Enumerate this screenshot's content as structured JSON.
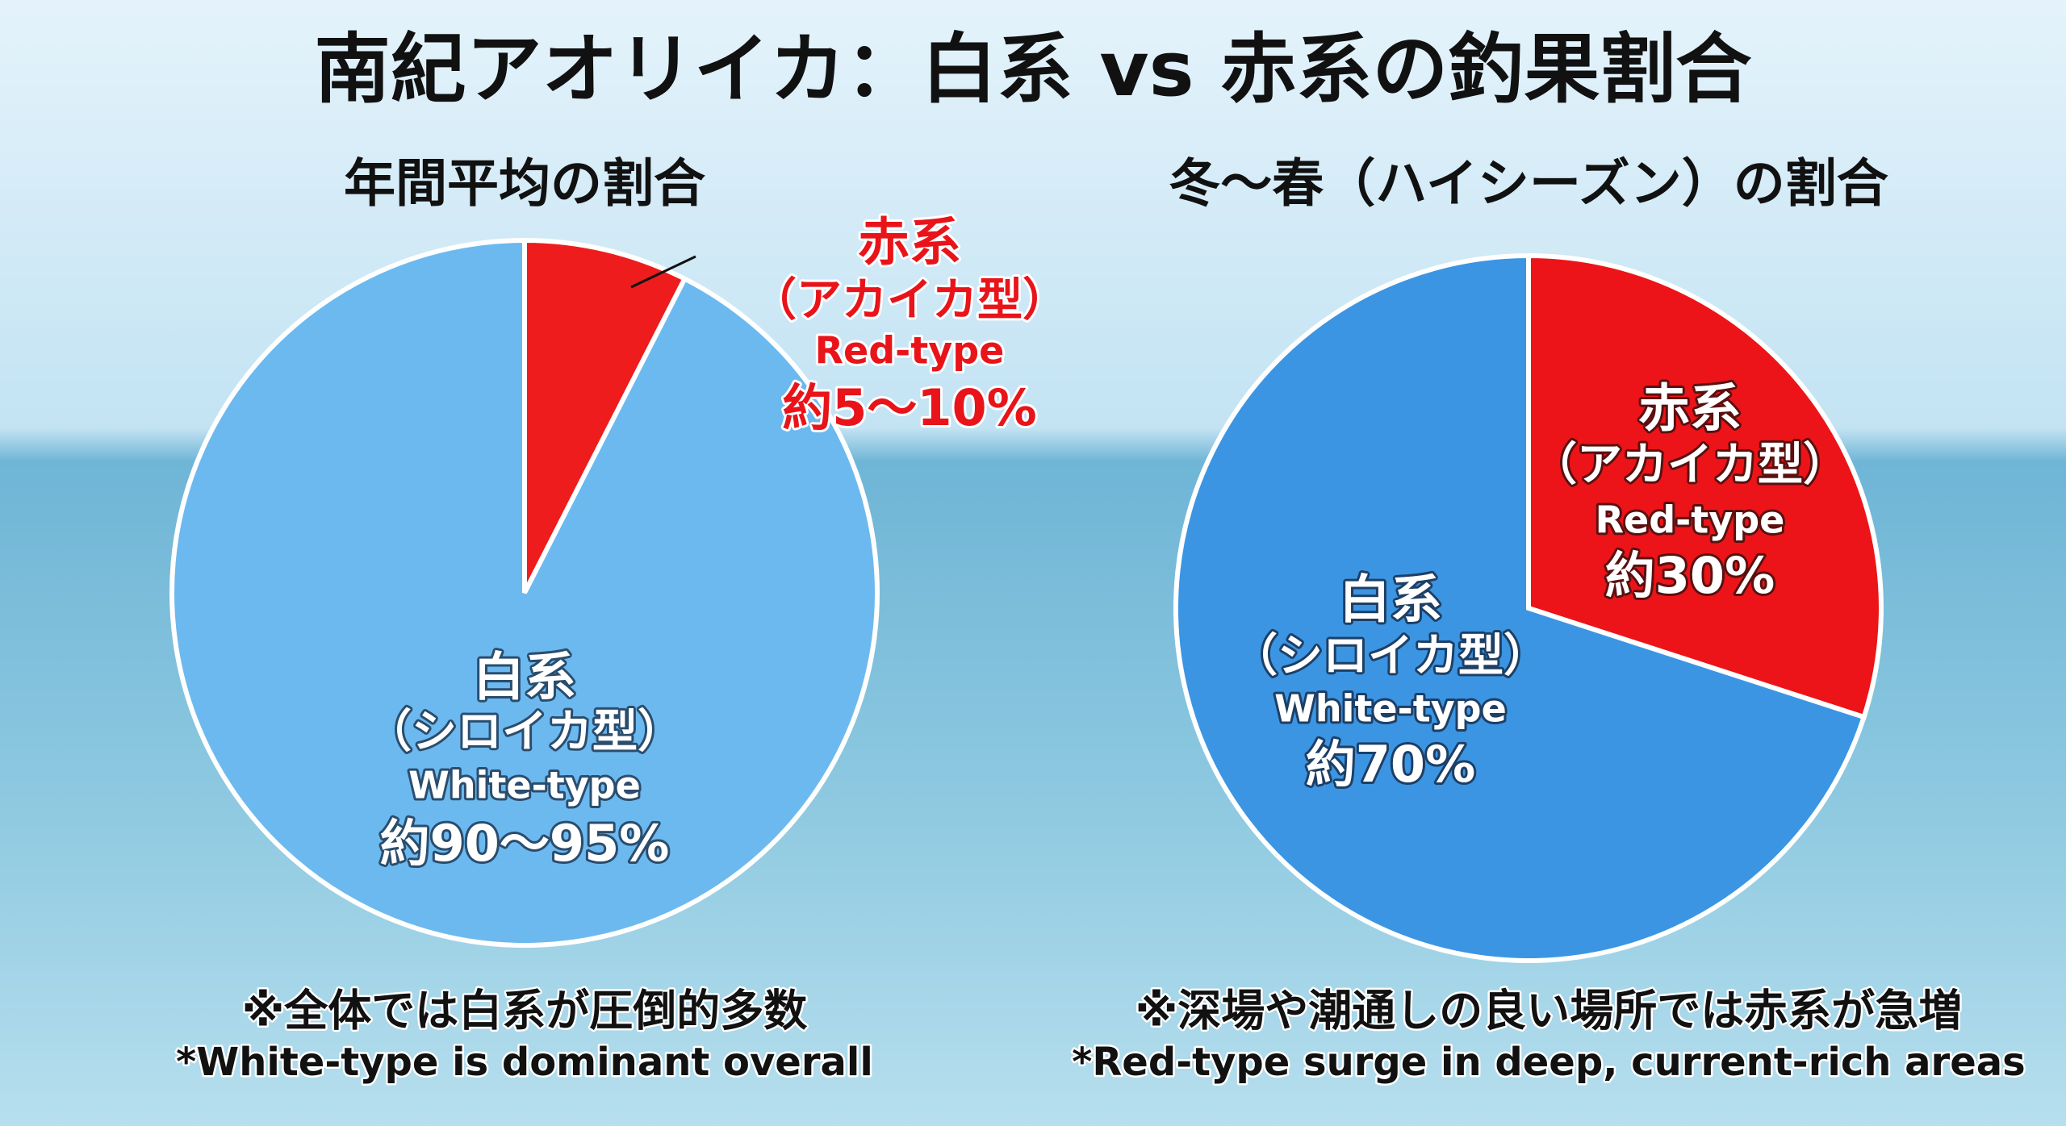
{
  "title": "南紀アオリイカ：白系 vs 赤系の釣果割合",
  "chart_data": [
    {
      "type": "pie",
      "title": "年間平均の割合",
      "categories": [
        "赤系",
        "白系"
      ],
      "category_types": [
        "（アカイカ型）",
        "（シロイカ型）"
      ],
      "category_english": [
        "Red-type",
        "White-type"
      ],
      "values": [
        7.5,
        92.5
      ],
      "value_labels": [
        "約5〜10%",
        "約90〜95%"
      ],
      "colors": [
        "#ee1c1c",
        "#6cb9ef"
      ],
      "notes": [
        "※全体では白系が圧倒的多数",
        "*White-type is dominant overall"
      ]
    },
    {
      "type": "pie",
      "title": "冬〜春（ハイシーズン）の割合",
      "categories": [
        "赤系",
        "白系"
      ],
      "category_types": [
        "（アカイカ型）",
        "（シロイカ型）"
      ],
      "category_english": [
        "Red-type",
        "White-type"
      ],
      "values": [
        30,
        70
      ],
      "value_labels": [
        "約30%",
        "約70%"
      ],
      "colors": [
        "#ec1418",
        "#3b95e2"
      ],
      "notes": [
        "※深場や潮通しの良い場所では赤系が急増",
        "*Red-type surge in deep, current-rich areas"
      ]
    }
  ]
}
